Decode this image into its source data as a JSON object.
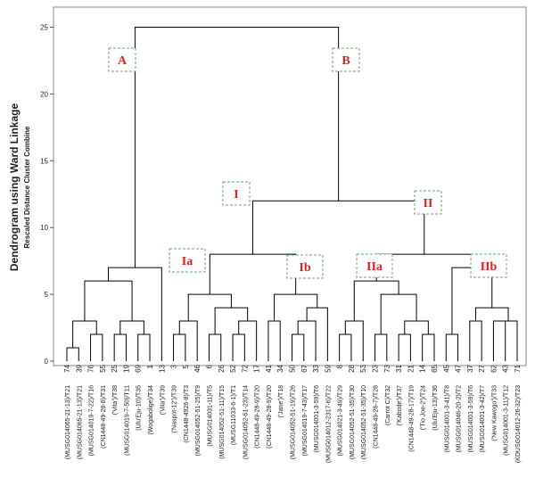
{
  "chart_data": {
    "type": "dendrogram",
    "title": "Dendrogram using Ward Linkage",
    "subtitle": "Rescaled Distance Cluster Combine",
    "ylim": [
      0,
      26.5
    ],
    "yticks": [
      0,
      5,
      10,
      15,
      20,
      25
    ],
    "color": "#000000",
    "leaves": [
      74,
      39,
      76,
      55,
      25,
      19,
      69,
      1,
      13,
      3,
      5,
      46,
      6,
      26,
      52,
      72,
      17,
      41,
      34,
      50,
      67,
      33,
      59,
      8,
      28,
      53,
      23,
      73,
      31,
      21,
      14,
      65,
      45,
      47,
      37,
      27,
      62,
      43,
      71
    ],
    "leaf_labels": [
      "(MUSG014065-21-13)/T21",
      "(MUSG014065-21-13)/T21",
      "(MUSG014019-7-22)/T16",
      "(CN1448-49-28-8)/T31",
      "('Vita')/T38",
      "(MUSG014019-7-50)/T11",
      "(Ulu'Eju-10)/T35",
      "(Wogabolige)/T34",
      "('Vita')/T39",
      "('Naspot-12')/T39",
      "(CN1448-4926-8)/T3",
      "(MUSG014052-51-25)/T9",
      "(MUSG014031-11)/T5",
      "(MUSG014052-51-11)/T15",
      "(MUSG11033-6-1)/T1",
      "(MUSG014052-51-23)/T14",
      "(CN1448-49-28-9)/T20",
      "(CN1448-49-28-9)/T20",
      "('Jane')/T18",
      "(MUSG014052-51-19)/T26",
      "(MUSG014019-7-43)/T17",
      "(MUSG014001-3-59)/T6",
      "(MUSG014012-2317-6)/T22",
      "(MUSG014021-3-49)/T29",
      "(MUSG014052-51-35)/T30",
      "(MUSG014052-51-35)/T10",
      "(CN1448-49-26-7)/T28",
      "(Carrot C)/T32",
      "('Kabode')/T37",
      "(CN1448-49-28-17)/T19",
      "('Tio Joe-2')/T24",
      "(Ulu'Eju-13)/T36",
      "(MUSG014001-3-41)/T8",
      "(MUSG014046-20-2)/T2",
      "(MUSG014001-3-59)/T6",
      "(MUSG014001-3-42)/T7",
      "('New Kawogo')/T33",
      "(MUSG014001-3-11)/T12",
      "(KDUSG014012-26-32)/T23"
    ],
    "merges": [
      [
        0,
        1,
        1
      ],
      [
        2,
        3,
        2
      ],
      [
        39,
        40,
        3
      ],
      [
        4,
        5,
        2
      ],
      [
        6,
        7,
        2
      ],
      [
        42,
        43,
        3
      ],
      [
        41,
        44,
        6
      ],
      [
        45,
        8,
        7
      ],
      [
        9,
        10,
        2
      ],
      [
        47,
        11,
        3
      ],
      [
        12,
        13,
        2
      ],
      [
        14,
        15,
        2
      ],
      [
        50,
        16,
        3
      ],
      [
        49,
        51,
        4
      ],
      [
        48,
        52,
        5
      ],
      [
        17,
        18,
        3
      ],
      [
        19,
        20,
        2
      ],
      [
        55,
        21,
        3
      ],
      [
        56,
        22,
        4
      ],
      [
        54,
        57,
        5
      ],
      [
        53,
        58,
        8
      ],
      [
        23,
        24,
        2
      ],
      [
        60,
        25,
        3
      ],
      [
        26,
        27,
        2
      ],
      [
        28,
        29,
        2
      ],
      [
        30,
        31,
        2
      ],
      [
        63,
        64,
        3
      ],
      [
        62,
        65,
        5
      ],
      [
        61,
        66,
        6
      ],
      [
        32,
        33,
        2
      ],
      [
        34,
        35,
        3
      ],
      [
        36,
        37,
        3
      ],
      [
        70,
        38,
        3
      ],
      [
        69,
        71,
        4
      ],
      [
        68,
        72,
        7
      ],
      [
        67,
        73,
        8
      ],
      [
        59,
        74,
        12
      ],
      [
        46,
        75,
        25
      ]
    ],
    "annotations": [
      "A",
      "B",
      "I",
      "II",
      "Ia",
      "Ib",
      "IIa",
      "IIb"
    ]
  }
}
